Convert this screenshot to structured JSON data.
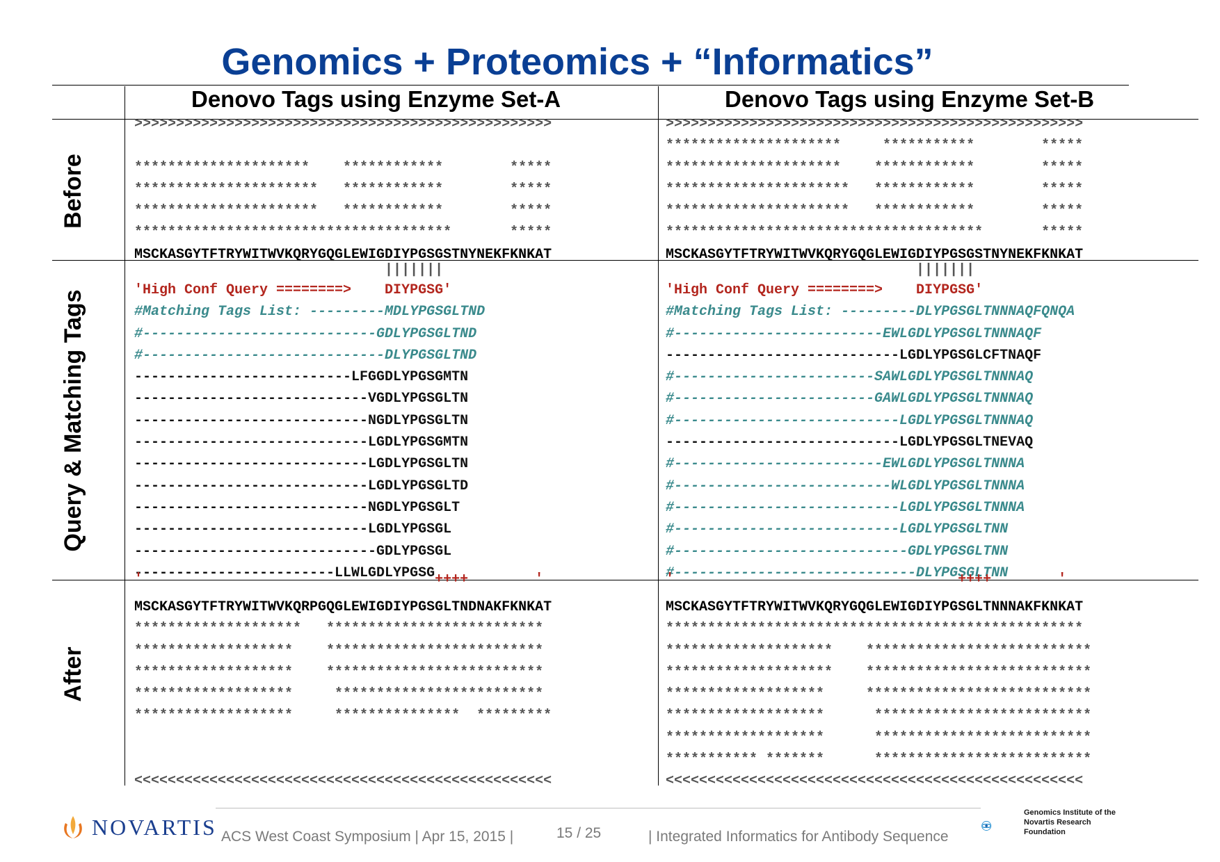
{
  "slide": {
    "title": "Genomics + Proteomics + “Informatics”",
    "column_a_header": "Denovo Tags using Enzyme Set-A",
    "column_b_header": "Denovo Tags using Enzyme Set-B",
    "row_labels": {
      "before": "Before",
      "query": "Query & Matching Tags",
      "after": "After"
    }
  },
  "before": {
    "a_lines": [
      ">>>>>>>>>>>>>>>>>>>>>>>>>>>>>>>>>>>>>>>>>>>>>>>>>>",
      "",
      "*********************    ************        *****",
      "**********************   ************        *****",
      "**********************   ************        *****",
      "**************************************       *****"
    ],
    "a_sequence": "MSCKASGYTFTRYWITWVKQRYGQGLEWIGDIYPGSGSTNYNEKFKNKAT",
    "b_lines": [
      ">>>>>>>>>>>>>>>>>>>>>>>>>>>>>>>>>>>>>>>>>>>>>>>>>>",
      "*********************     ***********        *****",
      "*********************    ************        *****",
      "**********************   ************        *****",
      "**********************   ************        *****",
      "**************************************       *****"
    ],
    "b_sequence": "MSCKASGYTFTRYWITWVKQRYGQGLEWIGDIYPGSGSTNYNEKFKNKAT"
  },
  "query": {
    "a_bars": "                              |||||||",
    "b_bars": "                              |||||||",
    "a_lines": [
      {
        "text": "'High Conf Query ========>    DIYPGSG'",
        "style": "red"
      },
      {
        "text": "#Matching Tags List: ---------MDLYPGSGLTND",
        "style": "teal"
      },
      {
        "text": "#----------------------------GDLYPGSGLTND",
        "style": "teal"
      },
      {
        "text": "#-----------------------------DLYPGSGLTND",
        "style": "teal"
      },
      {
        "text": "--------------------------LFGGDLYPGSGMTN",
        "style": "dark"
      },
      {
        "text": "----------------------------VGDLYPGSGLTN",
        "style": "dark"
      },
      {
        "text": "----------------------------NGDLYPGSGLTN",
        "style": "dark"
      },
      {
        "text": "----------------------------LGDLYPGSGMTN",
        "style": "dark"
      },
      {
        "text": "----------------------------LGDLYPGSGLTN",
        "style": "dark"
      },
      {
        "text": "----------------------------LGDLYPGSGLTD",
        "style": "dark"
      },
      {
        "text": "----------------------------NGDLYPGSGLT",
        "style": "dark"
      },
      {
        "text": "----------------------------LGDLYPGSGL",
        "style": "dark"
      },
      {
        "text": "-----------------------------GDLYPGSGL",
        "style": "dark"
      },
      {
        "text": "------------------------LLWLGDLYPGSG",
        "style": "dark"
      }
    ],
    "b_lines": [
      {
        "text": "'High Conf Query ========>    DIYPGSG'",
        "style": "red"
      },
      {
        "text": "#Matching Tags List: ---------DLYPGSGLTNNNAQFQNQA",
        "style": "teal"
      },
      {
        "text": "#-------------------------EWLGDLYPGSGLTNNNAQF",
        "style": "teal"
      },
      {
        "text": "----------------------------LGDLYPGSGLCFTNAQF",
        "style": "dark"
      },
      {
        "text": "#------------------------SAWLGDLYPGSGLTNNNAQ",
        "style": "teal"
      },
      {
        "text": "#------------------------GAWLGDLYPGSGLTNNNAQ",
        "style": "teal"
      },
      {
        "text": "#---------------------------LGDLYPGSGLTNNNAQ",
        "style": "teal"
      },
      {
        "text": "----------------------------LGDLYPGSGLTNEVAQ",
        "style": "dark"
      },
      {
        "text": "#-------------------------EWLGDLYPGSGLTNNNA",
        "style": "teal"
      },
      {
        "text": "#--------------------------WLGDLYPGSGLTNNNA",
        "style": "teal"
      },
      {
        "text": "#---------------------------LGDLYPGSGLTNNNA",
        "style": "teal"
      },
      {
        "text": "#---------------------------LGDLYPGSGLTNN",
        "style": "teal"
      },
      {
        "text": "#----------------------------GDLYPGSGLTNN",
        "style": "teal"
      },
      {
        "text": "#-----------------------------DLYPGSGLTNN",
        "style": "teal"
      }
    ],
    "a_marks": "'                                   ++++        '",
    "b_marks": "'                                  ++++        '"
  },
  "after": {
    "a_sequence": "MSCKASGYTFTRYWITWVKQRPGQGLEWIGDIYPGSGLTNDNAKFKNKAT",
    "a_lines": [
      "********************   **************************",
      "*******************    **************************",
      "*******************    **************************",
      "*******************     *************************",
      "*******************     ***************  *********",
      "",
      "",
      "<<<<<<<<<<<<<<<<<<<<<<<<<<<<<<<<<<<<<<<<<<<<<<<<<<"
    ],
    "b_sequence": "MSCKASGYTFTRYWITWVKQRYGQGLEWIGDIYPGSGLTNNNAKFKNKAT",
    "b_lines": [
      "**************************************************",
      "********************    ***************************",
      "********************    ***************************",
      "*******************     ***************************",
      "*******************      **************************",
      "*******************      **************************",
      "*********** *******      **************************",
      "<<<<<<<<<<<<<<<<<<<<<<<<<<<<<<<<<<<<<<<<<<<<<<<<<<"
    ]
  },
  "footer": {
    "company": "NOVARTIS",
    "event": "ACS West Coast Symposium | Apr 15, 2015 |",
    "page": "15 / 25",
    "topic": "| Integrated Informatics for Antibody Sequence",
    "institute_line1": "Genomics Institute of the",
    "institute_line2": "Novartis Research",
    "institute_line3": "Foundation"
  },
  "colors": {
    "title": "#0a3f94",
    "query_red": "#b3261e",
    "tag_teal": "#3a8a8c",
    "logo_blue": "#1b3f8f",
    "logo_orange": "#e87722"
  }
}
